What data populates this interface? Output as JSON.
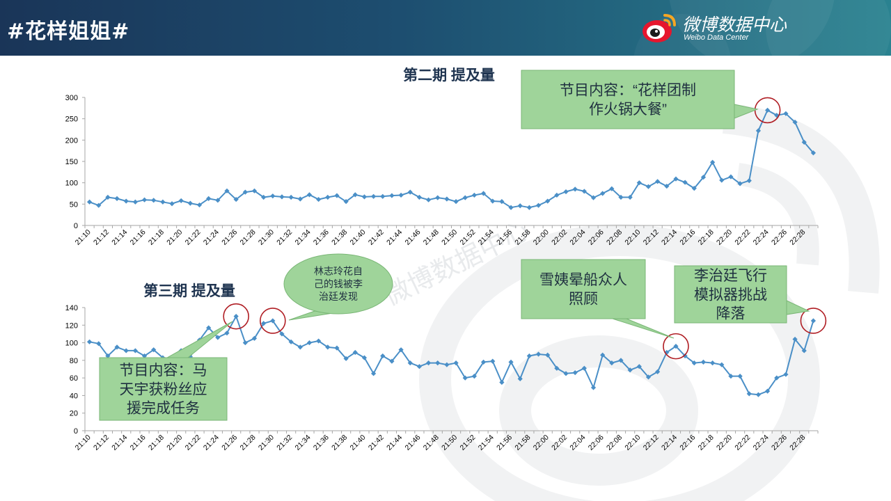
{
  "header": {
    "title": "#花样姐姐#",
    "brand_name": "微博数据中心",
    "brand_sub": "Weibo Data Center"
  },
  "watermark": "微博数据中心",
  "colors": {
    "line": "#4a8fc7",
    "callout_fill": "#9fd49a",
    "callout_border": "#79b675",
    "circle": "#b01e24"
  },
  "chart_data": [
    {
      "type": "line",
      "title": "第二期  提及量",
      "categories": [
        "21:10",
        "21:11",
        "21:12",
        "21:13",
        "21:14",
        "21:15",
        "21:16",
        "21:17",
        "21:18",
        "21:19",
        "21:20",
        "21:21",
        "21:22",
        "21:23",
        "21:24",
        "21:25",
        "21:26",
        "21:27",
        "21:28",
        "21:29",
        "21:30",
        "21:31",
        "21:32",
        "21:33",
        "21:34",
        "21:35",
        "21:36",
        "21:37",
        "21:38",
        "21:39",
        "21:40",
        "21:41",
        "21:42",
        "21:43",
        "21:44",
        "21:45",
        "21:46",
        "21:47",
        "21:48",
        "21:49",
        "21:50",
        "21:51",
        "21:52",
        "21:53",
        "21:54",
        "21:55",
        "21:56",
        "21:57",
        "21:58",
        "21:59",
        "22:00",
        "22:01",
        "22:02",
        "22:03",
        "22:04",
        "22:05",
        "22:06",
        "22:07",
        "22:08",
        "22:09",
        "22:10",
        "22:11",
        "22:12",
        "22:13",
        "22:14",
        "22:15",
        "22:16",
        "22:17",
        "22:18",
        "22:19",
        "22:20",
        "22:21",
        "22:22",
        "22:23",
        "22:24",
        "22:25",
        "22:26",
        "22:27",
        "22:28",
        "22:29"
      ],
      "tick_labels": [
        "21:10",
        "21:12",
        "21:14",
        "21:16",
        "21:18",
        "21:20",
        "21:22",
        "21:24",
        "21:26",
        "21:28",
        "21:30",
        "21:32",
        "21:34",
        "21:36",
        "21:38",
        "21:40",
        "21:42",
        "21:44",
        "21:46",
        "21:48",
        "21:50",
        "21:52",
        "21:54",
        "21:56",
        "21:58",
        "22:00",
        "22:02",
        "22:04",
        "22:06",
        "22:08",
        "22:10",
        "22:12",
        "22:14",
        "22:16",
        "22:18",
        "22:20",
        "22:22",
        "22:24",
        "22:26",
        "22:28"
      ],
      "values": [
        55,
        47,
        66,
        63,
        57,
        55,
        60,
        59,
        55,
        51,
        58,
        52,
        48,
        63,
        59,
        81,
        61,
        78,
        81,
        66,
        69,
        67,
        66,
        62,
        72,
        61,
        66,
        70,
        56,
        72,
        67,
        68,
        68,
        70,
        71,
        78,
        66,
        60,
        65,
        62,
        56,
        65,
        71,
        75,
        57,
        56,
        42,
        46,
        42,
        47,
        57,
        71,
        79,
        85,
        80,
        65,
        75,
        86,
        66,
        66,
        100,
        91,
        103,
        92,
        109,
        101,
        87,
        113,
        148,
        106,
        114,
        98,
        105,
        222,
        270,
        258,
        262,
        242,
        195,
        170
      ],
      "ylim": [
        0,
        300
      ],
      "yticks": [
        0,
        50,
        100,
        150,
        200,
        250,
        300
      ],
      "callouts": [
        {
          "text": "节目内容：“花样团制作火锅大餐”",
          "index": 74
        }
      ]
    },
    {
      "type": "line",
      "title": "第三期  提及量",
      "categories": [
        "21:10",
        "21:11",
        "21:12",
        "21:13",
        "21:14",
        "21:15",
        "21:16",
        "21:17",
        "21:18",
        "21:19",
        "21:20",
        "21:21",
        "21:22",
        "21:23",
        "21:24",
        "21:25",
        "21:26",
        "21:27",
        "21:28",
        "21:29",
        "21:30",
        "21:31",
        "21:32",
        "21:33",
        "21:34",
        "21:35",
        "21:36",
        "21:37",
        "21:38",
        "21:39",
        "21:40",
        "21:41",
        "21:42",
        "21:43",
        "21:44",
        "21:45",
        "21:46",
        "21:47",
        "21:48",
        "21:49",
        "21:50",
        "21:51",
        "21:52",
        "21:53",
        "21:54",
        "21:55",
        "21:56",
        "21:57",
        "21:58",
        "21:59",
        "22:00",
        "22:01",
        "22:02",
        "22:03",
        "22:04",
        "22:05",
        "22:06",
        "22:07",
        "22:08",
        "22:09",
        "22:10",
        "22:11",
        "22:12",
        "22:13",
        "22:14",
        "22:15",
        "22:16",
        "22:17",
        "22:18",
        "22:19",
        "22:20",
        "22:21",
        "22:22",
        "22:23",
        "22:24",
        "22:25",
        "22:26",
        "22:27",
        "22:28",
        "22:29"
      ],
      "tick_labels": [
        "21:10",
        "21:12",
        "21:14",
        "21:16",
        "21:18",
        "21:20",
        "21:22",
        "21:24",
        "21:26",
        "21:28",
        "21:30",
        "21:32",
        "21:34",
        "21:36",
        "21:38",
        "21:40",
        "21:42",
        "21:44",
        "21:46",
        "21:48",
        "21:50",
        "21:52",
        "21:54",
        "21:56",
        "21:58",
        "22:00",
        "22:02",
        "22:04",
        "22:06",
        "22:08",
        "22:10",
        "22:12",
        "22:14",
        "22:16",
        "22:18",
        "22:20",
        "22:22",
        "22:24",
        "22:26",
        "22:28"
      ],
      "values": [
        101,
        99,
        85,
        95,
        91,
        91,
        85,
        92,
        83,
        82,
        91,
        84,
        103,
        117,
        106,
        111,
        130,
        100,
        105,
        122,
        125,
        110,
        101,
        95,
        100,
        102,
        95,
        94,
        82,
        89,
        83,
        65,
        85,
        79,
        92,
        77,
        73,
        77,
        77,
        75,
        77,
        60,
        62,
        78,
        79,
        55,
        78,
        59,
        85,
        87,
        86,
        71,
        65,
        66,
        71,
        49,
        86,
        77,
        80,
        69,
        73,
        61,
        67,
        89,
        96,
        85,
        77,
        78,
        77,
        75,
        62,
        62,
        42,
        41,
        45,
        60,
        64,
        104,
        91,
        125
      ],
      "ylim": [
        0,
        140
      ],
      "yticks": [
        0,
        20,
        40,
        60,
        80,
        100,
        120,
        140
      ],
      "callouts": [
        {
          "text": "节目内容：马天宇获粉丝应援完成任务",
          "index": 16
        },
        {
          "text": "林志玲花自己的钱被李治廷发现",
          "index": 20
        },
        {
          "text": "雪姨晕船众人照顾",
          "index": 64
        },
        {
          "text": "李治廷飞行模拟器挑战降落",
          "index": 79
        }
      ]
    }
  ]
}
